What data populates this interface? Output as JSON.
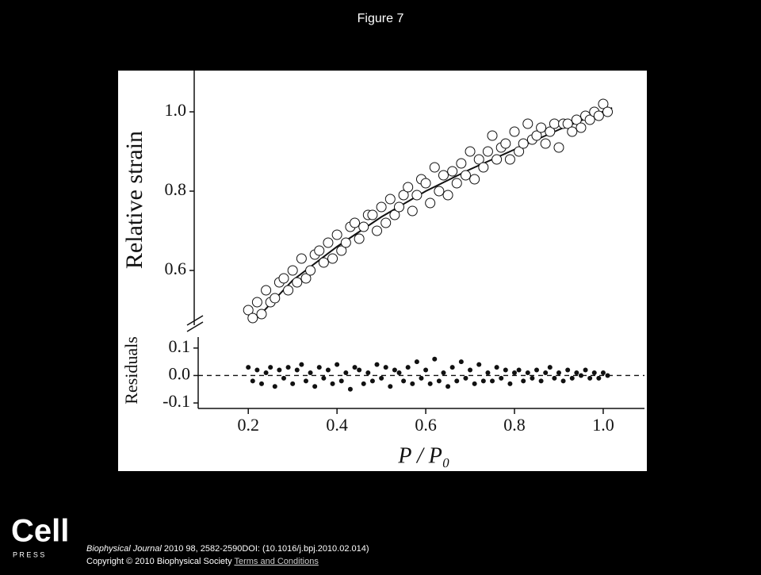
{
  "page_title": "Figure 7",
  "chart_data": [
    {
      "type": "scatter",
      "y_label": "Relative strain",
      "marker": "open-circle",
      "xlim": [
        0.096,
        1.093
      ],
      "ylim": [
        0.45,
        1.1
      ],
      "yticks": [
        0.6,
        0.8,
        {
          "value": 1.0,
          "label": "1.0"
        }
      ],
      "x": [
        0.2,
        0.21,
        0.22,
        0.23,
        0.24,
        0.25,
        0.26,
        0.27,
        0.28,
        0.29,
        0.3,
        0.31,
        0.32,
        0.33,
        0.34,
        0.35,
        0.36,
        0.37,
        0.38,
        0.39,
        0.4,
        0.41,
        0.42,
        0.43,
        0.44,
        0.45,
        0.46,
        0.47,
        0.48,
        0.49,
        0.5,
        0.51,
        0.52,
        0.53,
        0.54,
        0.55,
        0.56,
        0.57,
        0.58,
        0.59,
        0.6,
        0.61,
        0.62,
        0.63,
        0.64,
        0.65,
        0.66,
        0.67,
        0.68,
        0.69,
        0.7,
        0.71,
        0.72,
        0.73,
        0.74,
        0.75,
        0.76,
        0.77,
        0.78,
        0.79,
        0.8,
        0.81,
        0.82,
        0.83,
        0.84,
        0.85,
        0.86,
        0.87,
        0.88,
        0.89,
        0.9,
        0.91,
        0.92,
        0.93,
        0.94,
        0.95,
        0.96,
        0.97,
        0.98,
        0.99,
        1.0,
        1.01
      ],
      "values": [
        0.5,
        0.48,
        0.52,
        0.49,
        0.55,
        0.52,
        0.53,
        0.57,
        0.58,
        0.55,
        0.6,
        0.57,
        0.63,
        0.58,
        0.6,
        0.64,
        0.65,
        0.62,
        0.67,
        0.63,
        0.69,
        0.65,
        0.67,
        0.71,
        0.72,
        0.68,
        0.71,
        0.74,
        0.74,
        0.7,
        0.76,
        0.72,
        0.78,
        0.74,
        0.76,
        0.79,
        0.81,
        0.75,
        0.79,
        0.83,
        0.82,
        0.77,
        0.86,
        0.8,
        0.84,
        0.79,
        0.85,
        0.82,
        0.87,
        0.84,
        0.9,
        0.83,
        0.88,
        0.86,
        0.9,
        0.94,
        0.88,
        0.91,
        0.92,
        0.88,
        0.95,
        0.9,
        0.92,
        0.97,
        0.93,
        0.94,
        0.96,
        0.92,
        0.95,
        0.97,
        0.91,
        0.97,
        0.97,
        0.95,
        0.98,
        0.96,
        0.99,
        0.98,
        1.0,
        0.99,
        1.02,
        1.0
      ],
      "fit": {
        "x": [
          0.22,
          0.3,
          0.4,
          0.5,
          0.6,
          0.7,
          0.8,
          0.9,
          1.02
        ],
        "values": [
          0.48,
          0.575,
          0.66,
          0.735,
          0.8,
          0.855,
          0.905,
          0.955,
          1.01
        ]
      }
    },
    {
      "type": "scatter",
      "y_label": "Residuals",
      "x_label": "P / P₀",
      "marker": "filled-dot",
      "xlim": [
        0.096,
        1.093
      ],
      "ylim": [
        -0.12,
        0.14
      ],
      "xticks": [
        0.2,
        0.4,
        0.6,
        0.8,
        {
          "value": 1.0,
          "label": "1.0"
        }
      ],
      "yticks": [
        -0.1,
        {
          "value": 0.0,
          "label": "0.0"
        },
        0.1
      ],
      "x": [
        0.2,
        0.21,
        0.22,
        0.23,
        0.24,
        0.25,
        0.26,
        0.27,
        0.28,
        0.29,
        0.3,
        0.31,
        0.32,
        0.33,
        0.34,
        0.35,
        0.36,
        0.37,
        0.38,
        0.39,
        0.4,
        0.41,
        0.42,
        0.43,
        0.44,
        0.45,
        0.46,
        0.47,
        0.48,
        0.49,
        0.5,
        0.51,
        0.52,
        0.53,
        0.54,
        0.55,
        0.56,
        0.57,
        0.58,
        0.59,
        0.6,
        0.61,
        0.62,
        0.63,
        0.64,
        0.65,
        0.66,
        0.67,
        0.68,
        0.69,
        0.7,
        0.71,
        0.72,
        0.73,
        0.74,
        0.75,
        0.76,
        0.77,
        0.78,
        0.79,
        0.8,
        0.81,
        0.82,
        0.83,
        0.84,
        0.85,
        0.86,
        0.87,
        0.88,
        0.89,
        0.9,
        0.91,
        0.92,
        0.93,
        0.94,
        0.95,
        0.96,
        0.97,
        0.98,
        0.99,
        1.0,
        1.01
      ],
      "values": [
        0.03,
        -0.02,
        0.02,
        -0.03,
        0.01,
        0.03,
        -0.04,
        0.02,
        -0.01,
        0.03,
        -0.03,
        0.02,
        0.04,
        -0.02,
        0.01,
        -0.04,
        0.03,
        -0.01,
        0.02,
        -0.03,
        0.04,
        -0.02,
        0.01,
        -0.05,
        0.03,
        0.02,
        -0.03,
        0.01,
        -0.02,
        0.04,
        -0.01,
        0.03,
        -0.04,
        0.02,
        0.01,
        -0.02,
        0.03,
        -0.03,
        0.05,
        -0.01,
        0.02,
        -0.03,
        0.06,
        -0.02,
        0.01,
        -0.04,
        0.03,
        -0.02,
        0.05,
        -0.01,
        0.02,
        -0.03,
        0.04,
        -0.02,
        0.01,
        -0.02,
        0.03,
        -0.01,
        0.02,
        -0.03,
        0.01,
        0.02,
        -0.02,
        0.01,
        -0.01,
        0.02,
        -0.02,
        0.01,
        0.03,
        -0.01,
        0.01,
        -0.02,
        0.02,
        -0.01,
        0.01,
        0.0,
        0.02,
        -0.01,
        0.01,
        -0.01,
        0.01,
        0.0
      ]
    }
  ],
  "footer": {
    "logo": "Cell",
    "logo_sub": "P R E S S",
    "journal": "Biophysical Journal",
    "citation": " 2010 98, 2582-2590DOI: (10.1016/j.bpj.2010.02.014)",
    "copyright": "Copyright © 2010 Biophysical Society ",
    "link": "Terms and Conditions"
  }
}
